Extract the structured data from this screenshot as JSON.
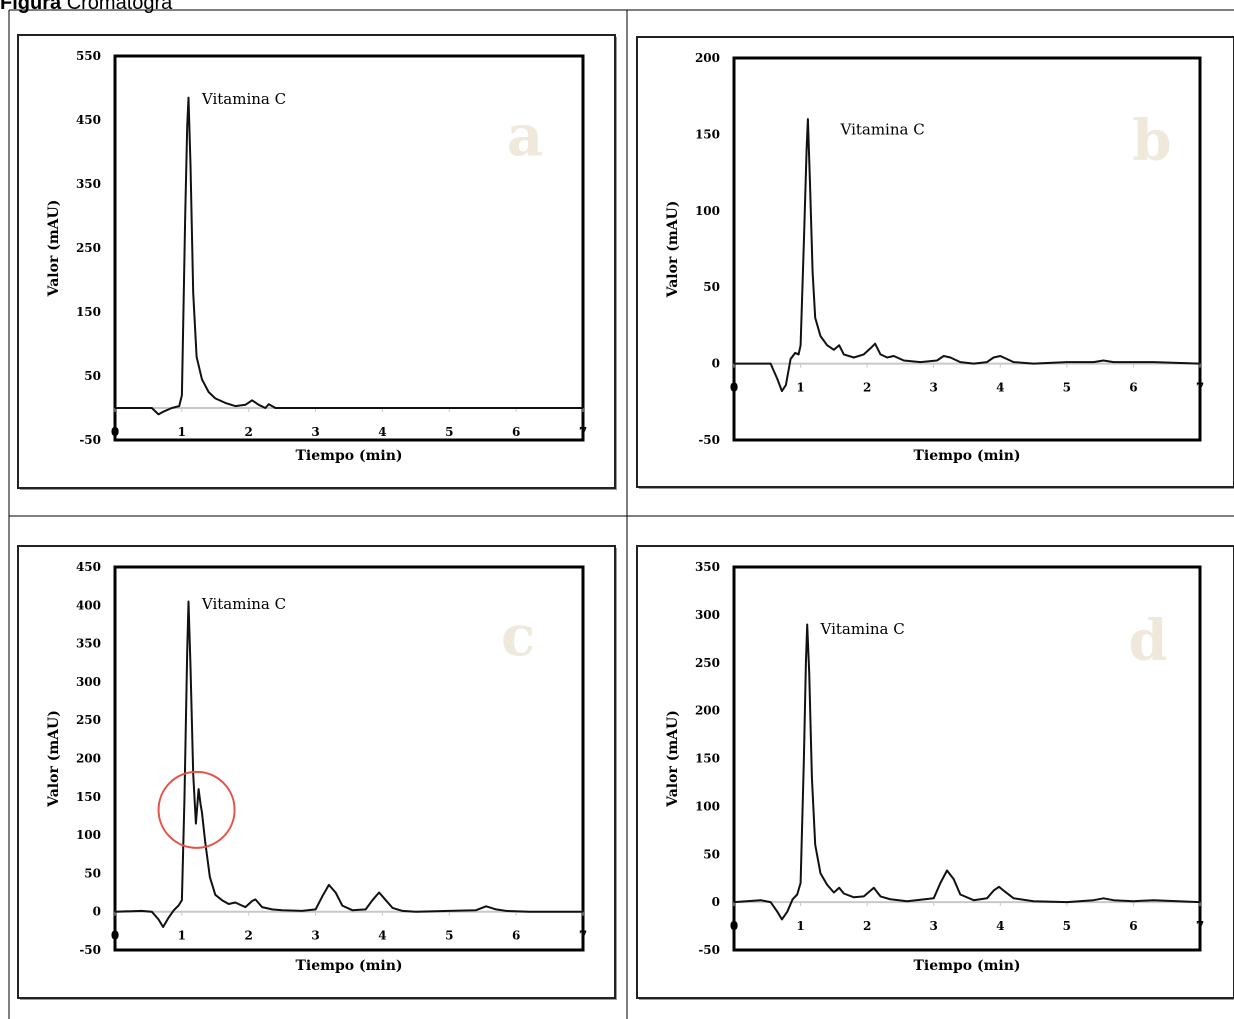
{
  "caption": {
    "bold": "Figura",
    "rest": "Cromatogra"
  },
  "colors": {
    "line": "#111111",
    "axis": "#c8c8c8",
    "frame": "#222222",
    "panel_letter": "#efe9dc",
    "circle": "#e8504a"
  },
  "chart_data": [
    {
      "type": "line",
      "panel": "a",
      "xlabel": "Tiempo (min)",
      "ylabel": "Valor (mAU)",
      "xlim": [
        0,
        7
      ],
      "ylim": [
        -50,
        550
      ],
      "xticks": [
        0,
        1,
        2,
        3,
        4,
        5,
        6,
        7
      ],
      "yticks": [
        -50,
        50,
        150,
        250,
        350,
        450,
        550
      ],
      "annotation": "Vitamina C",
      "annotation_at": [
        1.3,
        475
      ],
      "points": [
        [
          0,
          0
        ],
        [
          0.55,
          0
        ],
        [
          0.65,
          -10
        ],
        [
          0.72,
          -6
        ],
        [
          0.85,
          0
        ],
        [
          0.96,
          3
        ],
        [
          1.0,
          20
        ],
        [
          1.05,
          300
        ],
        [
          1.08,
          440
        ],
        [
          1.1,
          485
        ],
        [
          1.13,
          380
        ],
        [
          1.17,
          180
        ],
        [
          1.22,
          80
        ],
        [
          1.3,
          45
        ],
        [
          1.4,
          25
        ],
        [
          1.5,
          15
        ],
        [
          1.65,
          8
        ],
        [
          1.8,
          3
        ],
        [
          1.95,
          5
        ],
        [
          2.05,
          12
        ],
        [
          2.15,
          5
        ],
        [
          2.25,
          0
        ],
        [
          2.3,
          6
        ],
        [
          2.4,
          0
        ],
        [
          7,
          0
        ]
      ]
    },
    {
      "type": "line",
      "panel": "b",
      "xlabel": "Tiempo (min)",
      "ylabel": "Valor (mAU)",
      "xlim": [
        0,
        7
      ],
      "ylim": [
        -50,
        200
      ],
      "xticks": [
        0,
        1,
        2,
        3,
        4,
        5,
        6,
        7
      ],
      "yticks": [
        -50,
        0,
        50,
        100,
        150,
        200
      ],
      "annotation": "Vitamina C",
      "annotation_at": [
        1.6,
        150
      ],
      "points": [
        [
          0,
          0
        ],
        [
          0.55,
          0
        ],
        [
          0.65,
          -10
        ],
        [
          0.72,
          -18
        ],
        [
          0.78,
          -14
        ],
        [
          0.85,
          3
        ],
        [
          0.92,
          7
        ],
        [
          0.97,
          6
        ],
        [
          1.0,
          12
        ],
        [
          1.05,
          80
        ],
        [
          1.09,
          140
        ],
        [
          1.11,
          160
        ],
        [
          1.14,
          120
        ],
        [
          1.18,
          60
        ],
        [
          1.22,
          30
        ],
        [
          1.3,
          18
        ],
        [
          1.4,
          12
        ],
        [
          1.5,
          9
        ],
        [
          1.58,
          12
        ],
        [
          1.65,
          6
        ],
        [
          1.8,
          4
        ],
        [
          1.95,
          6
        ],
        [
          2.05,
          10
        ],
        [
          2.12,
          13
        ],
        [
          2.2,
          6
        ],
        [
          2.3,
          4
        ],
        [
          2.4,
          5
        ],
        [
          2.55,
          2
        ],
        [
          2.8,
          1
        ],
        [
          3.05,
          2
        ],
        [
          3.15,
          5
        ],
        [
          3.25,
          4
        ],
        [
          3.4,
          1
        ],
        [
          3.6,
          0
        ],
        [
          3.8,
          1
        ],
        [
          3.9,
          4
        ],
        [
          4.0,
          5
        ],
        [
          4.1,
          3
        ],
        [
          4.2,
          1
        ],
        [
          4.5,
          0
        ],
        [
          5.0,
          1
        ],
        [
          5.4,
          1
        ],
        [
          5.55,
          2
        ],
        [
          5.7,
          1
        ],
        [
          6.3,
          1
        ],
        [
          7,
          0
        ]
      ]
    },
    {
      "type": "line",
      "panel": "c",
      "xlabel": "Tiempo (min)",
      "ylabel": "Valor (mAU)",
      "xlim": [
        0,
        7
      ],
      "ylim": [
        -50,
        450
      ],
      "xticks": [
        0,
        1,
        2,
        3,
        4,
        5,
        6,
        7
      ],
      "yticks": [
        -50,
        0,
        50,
        100,
        150,
        200,
        250,
        300,
        350,
        400,
        450
      ],
      "annotation": "Vitamina C",
      "annotation_at": [
        1.3,
        395
      ],
      "circle_at": [
        1.22,
        133
      ],
      "points": [
        [
          0,
          0
        ],
        [
          0.4,
          1
        ],
        [
          0.55,
          0
        ],
        [
          0.65,
          -10
        ],
        [
          0.72,
          -20
        ],
        [
          0.8,
          -8
        ],
        [
          0.88,
          2
        ],
        [
          0.95,
          8
        ],
        [
          1.0,
          15
        ],
        [
          1.04,
          150
        ],
        [
          1.08,
          340
        ],
        [
          1.1,
          405
        ],
        [
          1.13,
          320
        ],
        [
          1.17,
          180
        ],
        [
          1.21,
          115
        ],
        [
          1.25,
          160
        ],
        [
          1.28,
          140
        ],
        [
          1.3,
          130
        ],
        [
          1.35,
          90
        ],
        [
          1.42,
          45
        ],
        [
          1.5,
          22
        ],
        [
          1.6,
          15
        ],
        [
          1.7,
          10
        ],
        [
          1.8,
          12
        ],
        [
          1.9,
          8
        ],
        [
          1.95,
          6
        ],
        [
          2.05,
          14
        ],
        [
          2.1,
          16
        ],
        [
          2.2,
          6
        ],
        [
          2.35,
          3
        ],
        [
          2.5,
          2
        ],
        [
          2.8,
          1
        ],
        [
          3.0,
          3
        ],
        [
          3.1,
          20
        ],
        [
          3.2,
          35
        ],
        [
          3.3,
          25
        ],
        [
          3.4,
          8
        ],
        [
          3.55,
          2
        ],
        [
          3.75,
          3
        ],
        [
          3.85,
          15
        ],
        [
          3.95,
          25
        ],
        [
          4.05,
          15
        ],
        [
          4.15,
          5
        ],
        [
          4.3,
          1
        ],
        [
          4.5,
          0
        ],
        [
          5.0,
          1
        ],
        [
          5.4,
          2
        ],
        [
          5.55,
          7
        ],
        [
          5.7,
          3
        ],
        [
          5.85,
          1
        ],
        [
          6.2,
          0
        ],
        [
          7,
          0
        ]
      ]
    },
    {
      "type": "line",
      "panel": "d",
      "xlabel": "Tiempo (min)",
      "ylabel": "Valor (mAU)",
      "xlim": [
        0,
        7
      ],
      "ylim": [
        -50,
        350
      ],
      "xticks": [
        0,
        1,
        2,
        3,
        4,
        5,
        6,
        7
      ],
      "yticks": [
        -50,
        0,
        50,
        100,
        150,
        200,
        250,
        300,
        350
      ],
      "annotation": "Vitamina C",
      "annotation_at": [
        1.3,
        280
      ],
      "points": [
        [
          0,
          0
        ],
        [
          0.4,
          2
        ],
        [
          0.55,
          0
        ],
        [
          0.65,
          -10
        ],
        [
          0.72,
          -18
        ],
        [
          0.8,
          -10
        ],
        [
          0.88,
          3
        ],
        [
          0.95,
          8
        ],
        [
          1.0,
          20
        ],
        [
          1.05,
          150
        ],
        [
          1.08,
          250
        ],
        [
          1.1,
          290
        ],
        [
          1.13,
          240
        ],
        [
          1.17,
          130
        ],
        [
          1.22,
          60
        ],
        [
          1.3,
          30
        ],
        [
          1.4,
          18
        ],
        [
          1.5,
          10
        ],
        [
          1.58,
          15
        ],
        [
          1.65,
          9
        ],
        [
          1.8,
          5
        ],
        [
          1.95,
          6
        ],
        [
          2.05,
          12
        ],
        [
          2.1,
          15
        ],
        [
          2.2,
          6
        ],
        [
          2.35,
          3
        ],
        [
          2.6,
          1
        ],
        [
          3.0,
          4
        ],
        [
          3.1,
          20
        ],
        [
          3.2,
          33
        ],
        [
          3.3,
          24
        ],
        [
          3.4,
          8
        ],
        [
          3.6,
          2
        ],
        [
          3.8,
          4
        ],
        [
          3.9,
          12
        ],
        [
          3.98,
          16
        ],
        [
          4.05,
          12
        ],
        [
          4.2,
          4
        ],
        [
          4.5,
          1
        ],
        [
          5.0,
          0
        ],
        [
          5.4,
          2
        ],
        [
          5.55,
          4
        ],
        [
          5.7,
          2
        ],
        [
          6.0,
          1
        ],
        [
          6.3,
          2
        ],
        [
          7,
          0
        ]
      ]
    }
  ]
}
